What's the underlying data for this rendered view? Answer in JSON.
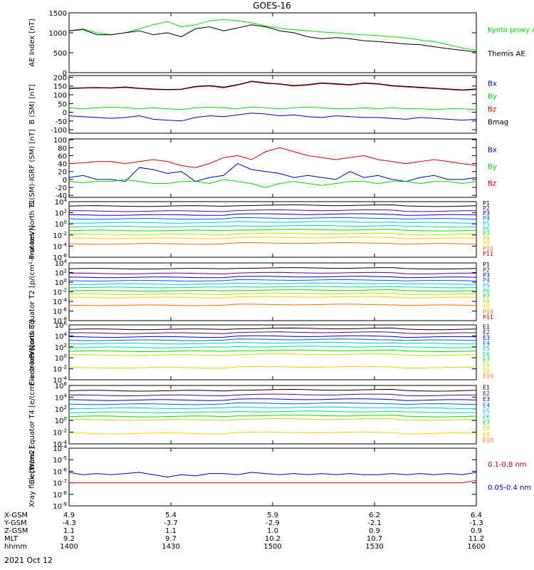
{
  "title": "GOES-16",
  "date": "2021 Oct 12",
  "colors": {
    "black": "#000000",
    "green": "#00dd00",
    "red": "#dd0000",
    "blue": "#0000cc",
    "scale": [
      "#000000",
      "#6a0080",
      "#0000cc",
      "#0060ff",
      "#00c8e0",
      "#00d8a0",
      "#00e000",
      "#c0e000",
      "#ffd000",
      "#ff7000",
      "#dd0000",
      "#a00000"
    ]
  },
  "chart_data": [
    {
      "type": "line",
      "panel": "ae",
      "ylabel": "AE Index [nT]",
      "ylim": [
        0,
        1500
      ],
      "yticks": [
        0,
        500,
        1000,
        1500
      ],
      "ticklabels": [
        "0",
        "500",
        "1000",
        "1500"
      ],
      "legend": [
        {
          "label": "Kyoto proxy AE",
          "color": "green"
        },
        {
          "label": "Themis AE",
          "color": "black"
        }
      ],
      "series": [
        {
          "name": "Kyoto proxy AE",
          "color": "green",
          "values": [
            1050,
            1100,
            1000,
            950,
            1000,
            1100,
            1200,
            1280,
            1150,
            1200,
            1300,
            1330,
            1300,
            1250,
            1170,
            1110,
            1080,
            1050,
            1020,
            1000,
            970,
            950,
            930,
            900,
            870,
            820,
            780,
            700,
            620,
            560
          ]
        },
        {
          "name": "Themis AE",
          "color": "black",
          "values": [
            1050,
            1080,
            950,
            950,
            1000,
            1050,
            950,
            1000,
            900,
            1100,
            1150,
            1050,
            1120,
            1200,
            1150,
            1050,
            1000,
            900,
            850,
            880,
            850,
            800,
            780,
            750,
            720,
            700,
            650,
            600,
            560,
            520
          ]
        }
      ]
    },
    {
      "type": "line",
      "panel": "bsm",
      "ylabel": "B (SM) [nT]",
      "ylim": [
        -120,
        210
      ],
      "yticks": [
        -100,
        -50,
        0,
        50,
        100,
        150,
        200
      ],
      "ticklabels": [
        "-100",
        "-50",
        "0",
        "50",
        "100",
        "150",
        "200"
      ],
      "legend": [
        {
          "label": "Bx",
          "color": "blue"
        },
        {
          "label": "By",
          "color": "green"
        },
        {
          "label": "Bz",
          "color": "red"
        },
        {
          "label": "Bmag",
          "color": "black"
        }
      ],
      "series": [
        {
          "name": "Bx",
          "color": "blue",
          "values": [
            -20,
            -25,
            -30,
            -35,
            -30,
            -20,
            -40,
            -45,
            -50,
            -30,
            -20,
            -25,
            -15,
            -5,
            -10,
            -20,
            -15,
            -25,
            -30,
            -20,
            -25,
            -30,
            -30,
            -35,
            -40,
            -30,
            -35,
            -40,
            -45,
            -40
          ]
        },
        {
          "name": "By",
          "color": "green",
          "values": [
            25,
            20,
            25,
            30,
            25,
            20,
            25,
            20,
            15,
            25,
            30,
            25,
            20,
            30,
            25,
            20,
            25,
            30,
            25,
            20,
            20,
            25,
            20,
            25,
            20,
            20,
            15,
            20,
            20,
            15
          ]
        },
        {
          "name": "Bz",
          "color": "red",
          "values": [
            135,
            138,
            140,
            138,
            142,
            135,
            130,
            128,
            130,
            145,
            150,
            140,
            155,
            175,
            165,
            160,
            150,
            155,
            165,
            160,
            155,
            165,
            160,
            150,
            145,
            140,
            135,
            130,
            125,
            130
          ]
        },
        {
          "name": "Bmag",
          "color": "black",
          "values": [
            138,
            140,
            142,
            140,
            145,
            138,
            133,
            130,
            132,
            148,
            153,
            143,
            158,
            178,
            168,
            162,
            153,
            158,
            168,
            163,
            158,
            168,
            163,
            153,
            148,
            143,
            138,
            133,
            128,
            133
          ]
        }
      ]
    },
    {
      "type": "line",
      "panel": "bigrf",
      "ylabel": "B (SM)-IGRF (SM) [nT]",
      "ylim": [
        -45,
        102
      ],
      "yticks": [
        -40,
        -20,
        0,
        20,
        40,
        60,
        80,
        100
      ],
      "ticklabels": [
        "-40",
        "-20",
        "0",
        "20",
        "40",
        "60",
        "80",
        "100"
      ],
      "legend": [
        {
          "label": "Bx",
          "color": "blue"
        },
        {
          "label": "By",
          "color": "green"
        },
        {
          "label": "Bz",
          "color": "red"
        }
      ],
      "series": [
        {
          "name": "Bx",
          "color": "blue",
          "values": [
            5,
            10,
            0,
            0,
            -5,
            30,
            25,
            15,
            20,
            -5,
            5,
            10,
            40,
            25,
            20,
            15,
            5,
            10,
            5,
            0,
            20,
            5,
            10,
            0,
            -5,
            5,
            10,
            0,
            0,
            5
          ]
        },
        {
          "name": "By",
          "color": "green",
          "values": [
            -5,
            -8,
            -5,
            -5,
            0,
            -5,
            -10,
            -10,
            -5,
            -5,
            -10,
            0,
            -5,
            -10,
            -20,
            -10,
            -5,
            -10,
            -15,
            -10,
            -5,
            -5,
            -10,
            -5,
            -5,
            -10,
            -5,
            -5,
            -10,
            -5
          ]
        },
        {
          "name": "Bz",
          "color": "red",
          "values": [
            40,
            42,
            45,
            45,
            40,
            45,
            50,
            45,
            35,
            30,
            40,
            55,
            60,
            50,
            70,
            80,
            70,
            60,
            55,
            50,
            55,
            60,
            50,
            45,
            40,
            45,
            50,
            45,
            40,
            35
          ]
        }
      ]
    },
    {
      "type": "line",
      "panel": "pn",
      "scale": "log",
      "ylabel": "Protons North T1",
      "ylim": [
        -6,
        4
      ],
      "yticks": [
        -6,
        -4,
        -2,
        0,
        2,
        4
      ],
      "ticklabels": [
        "10-6",
        "10-4",
        "10-2",
        "100",
        "102",
        "104"
      ],
      "legend": [
        "P1",
        "P2",
        "P3",
        "P4",
        "P5",
        "P6",
        "P7",
        "P8",
        "P9",
        "P10",
        "P11"
      ],
      "levels": [
        3.2,
        2.3,
        1.6,
        0.9,
        0.2,
        -0.5,
        -1.2,
        -1.9,
        -2.6,
        -3.6
      ]
    },
    {
      "type": "line",
      "panel": "pe",
      "scale": "log",
      "ylabel": "Protons Equator T2 [p/(cm²-s-sr-keV)]",
      "ylim": [
        -8,
        4
      ],
      "yticks": [
        -8,
        -6,
        -4,
        -2,
        0,
        2,
        4
      ],
      "ticklabels": [
        "10-8",
        "10-6",
        "10-4",
        "10-2",
        "100",
        "102",
        "104"
      ],
      "legend": [
        "P1",
        "P2",
        "P3",
        "P4",
        "P5",
        "P6",
        "P7",
        "P8",
        "P9",
        "P10",
        "P11"
      ],
      "levels": [
        2.8,
        1.8,
        1.0,
        0.3,
        -0.4,
        -1.1,
        -1.8,
        -2.5,
        -3.2,
        -4.8
      ]
    },
    {
      "type": "line",
      "panel": "en",
      "scale": "log",
      "ylabel": "Electrons North T3",
      "ylim": [
        -4,
        6
      ],
      "yticks": [
        -4,
        -2,
        0,
        2,
        4,
        6
      ],
      "ticklabels": [
        "10-4",
        "10-2",
        "100",
        "102",
        "104",
        "106"
      ],
      "legend": [
        "E1",
        "E2",
        "E3",
        "E4",
        "E5",
        "E6",
        "E7",
        "E8",
        "E9",
        "E10"
      ],
      "levels": [
        5.2,
        4.5,
        3.8,
        3.2,
        2.6,
        1.9,
        1.2,
        0.5,
        -1.8
      ]
    },
    {
      "type": "line",
      "panel": "ee",
      "scale": "log",
      "ylabel": "Electrons Equator T4 [e/(cm²-s-sr-keV)]",
      "ylim": [
        -4,
        6
      ],
      "yticks": [
        -4,
        -2,
        0,
        2,
        4,
        6
      ],
      "ticklabels": [
        "10-4",
        "10-2",
        "100",
        "102",
        "104",
        "106"
      ],
      "legend": [
        "E1",
        "E2",
        "E3",
        "E4",
        "E5",
        "E6",
        "E7",
        "E8",
        "E9",
        "E10"
      ],
      "levels": [
        5.1,
        4.3,
        3.5,
        2.8,
        2.1,
        1.4,
        0.7,
        0.1,
        -2.2
      ]
    },
    {
      "type": "line",
      "panel": "xray",
      "scale": "log",
      "ylabel": "Xray flux [W/m2]",
      "ylim": [
        -9,
        -4
      ],
      "yticks": [
        -9,
        -8,
        -7,
        -6,
        -5,
        -4
      ],
      "ticklabels": [
        "10-9",
        "10-8",
        "10-7",
        "10-6",
        "10-5",
        "10-4"
      ],
      "legend": [
        {
          "label": "0.1-0.8 nm",
          "color": "red"
        },
        {
          "label": "0.05-0.4 nm",
          "color": "blue"
        }
      ],
      "series": [
        {
          "name": "0.1-0.8 nm",
          "color": "red",
          "values": [
            -7,
            -7,
            -7,
            -7,
            -7,
            -7,
            -7,
            -7,
            -7,
            -7,
            -7,
            -7,
            -7,
            -7,
            -7,
            -7,
            -7,
            -7,
            -7,
            -7,
            -7,
            -7,
            -7,
            -7,
            -7,
            -7,
            -7,
            -7,
            -7,
            -6.8
          ]
        },
        {
          "name": "0.05-0.4 nm",
          "color": "blue",
          "values": [
            -6.1,
            -6.3,
            -6.2,
            -6.3,
            -6.2,
            -6.1,
            -6.3,
            -6.5,
            -6.3,
            -6.4,
            -6.2,
            -6.2,
            -6.3,
            -6.1,
            -6.2,
            -6.3,
            -6.2,
            -6.3,
            -6.2,
            -6.3,
            -6.2,
            -6.3,
            -6.3,
            -6.2,
            -6.3,
            -6.2,
            -6.3,
            -6.2,
            -6.3,
            -6.1
          ]
        }
      ]
    }
  ],
  "xaxis": {
    "rows": [
      "X-GSM",
      "Y-GSM",
      "Z-GSM",
      "MLT",
      "hhmm"
    ],
    "ticks": [
      {
        "vals": [
          "4.9",
          "-4.3",
          "1.1",
          "9.2",
          "1400"
        ]
      },
      {
        "vals": [
          "5.4",
          "-3.7",
          "1.1",
          "9.7",
          "1430"
        ]
      },
      {
        "vals": [
          "5.9",
          "-2.9",
          "1.0",
          "10.2",
          "1500"
        ]
      },
      {
        "vals": [
          "6.2",
          "-2.1",
          "0.9",
          "10.7",
          "1530"
        ]
      },
      {
        "vals": [
          "6.4",
          "-1.3",
          "0.9",
          "11.2",
          "1600"
        ]
      }
    ]
  }
}
